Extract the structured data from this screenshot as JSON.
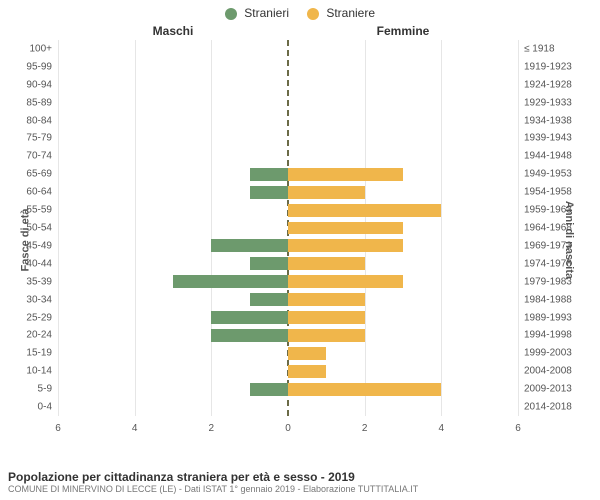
{
  "legend": {
    "male": {
      "label": "Stranieri",
      "color": "#6d9a6d"
    },
    "female": {
      "label": "Straniere",
      "color": "#f0b64b"
    }
  },
  "headers": {
    "male": "Maschi",
    "female": "Femmine"
  },
  "axis_titles": {
    "left": "Fasce di età",
    "right": "Anni di nascita"
  },
  "x_axis": {
    "min": -6,
    "max": 6,
    "ticks": [
      -6,
      -4,
      -2,
      0,
      2,
      4,
      6
    ],
    "tick_labels": [
      "6",
      "4",
      "2",
      "0",
      "2",
      "4",
      "6"
    ]
  },
  "chart": {
    "type": "population-pyramid",
    "background_color": "#ffffff",
    "grid_color": "#e6e6e6",
    "center_line_color": "#6b6b47",
    "bar_height_ratio": 0.72,
    "rows": [
      {
        "age": "100+",
        "birth": "≤ 1918",
        "male": 0,
        "female": 0
      },
      {
        "age": "95-99",
        "birth": "1919-1923",
        "male": 0,
        "female": 0
      },
      {
        "age": "90-94",
        "birth": "1924-1928",
        "male": 0,
        "female": 0
      },
      {
        "age": "85-89",
        "birth": "1929-1933",
        "male": 0,
        "female": 0
      },
      {
        "age": "80-84",
        "birth": "1934-1938",
        "male": 0,
        "female": 0
      },
      {
        "age": "75-79",
        "birth": "1939-1943",
        "male": 0,
        "female": 0
      },
      {
        "age": "70-74",
        "birth": "1944-1948",
        "male": 0,
        "female": 0
      },
      {
        "age": "65-69",
        "birth": "1949-1953",
        "male": 1,
        "female": 3
      },
      {
        "age": "60-64",
        "birth": "1954-1958",
        "male": 1,
        "female": 2
      },
      {
        "age": "55-59",
        "birth": "1959-1963",
        "male": 0,
        "female": 4
      },
      {
        "age": "50-54",
        "birth": "1964-1968",
        "male": 0,
        "female": 3
      },
      {
        "age": "45-49",
        "birth": "1969-1973",
        "male": 2,
        "female": 3
      },
      {
        "age": "40-44",
        "birth": "1974-1978",
        "male": 1,
        "female": 2
      },
      {
        "age": "35-39",
        "birth": "1979-1983",
        "male": 3,
        "female": 3
      },
      {
        "age": "30-34",
        "birth": "1984-1988",
        "male": 1,
        "female": 2
      },
      {
        "age": "25-29",
        "birth": "1989-1993",
        "male": 2,
        "female": 2
      },
      {
        "age": "20-24",
        "birth": "1994-1998",
        "male": 2,
        "female": 2
      },
      {
        "age": "15-19",
        "birth": "1999-2003",
        "male": 0,
        "female": 1
      },
      {
        "age": "10-14",
        "birth": "2004-2008",
        "male": 0,
        "female": 1
      },
      {
        "age": "5-9",
        "birth": "2009-2013",
        "male": 1,
        "female": 4
      },
      {
        "age": "0-4",
        "birth": "2014-2018",
        "male": 0,
        "female": 0
      }
    ]
  },
  "footer": {
    "title": "Popolazione per cittadinanza straniera per età e sesso - 2019",
    "subtitle": "COMUNE DI MINERVINO DI LECCE (LE) - Dati ISTAT 1° gennaio 2019 - Elaborazione TUTTITALIA.IT"
  }
}
